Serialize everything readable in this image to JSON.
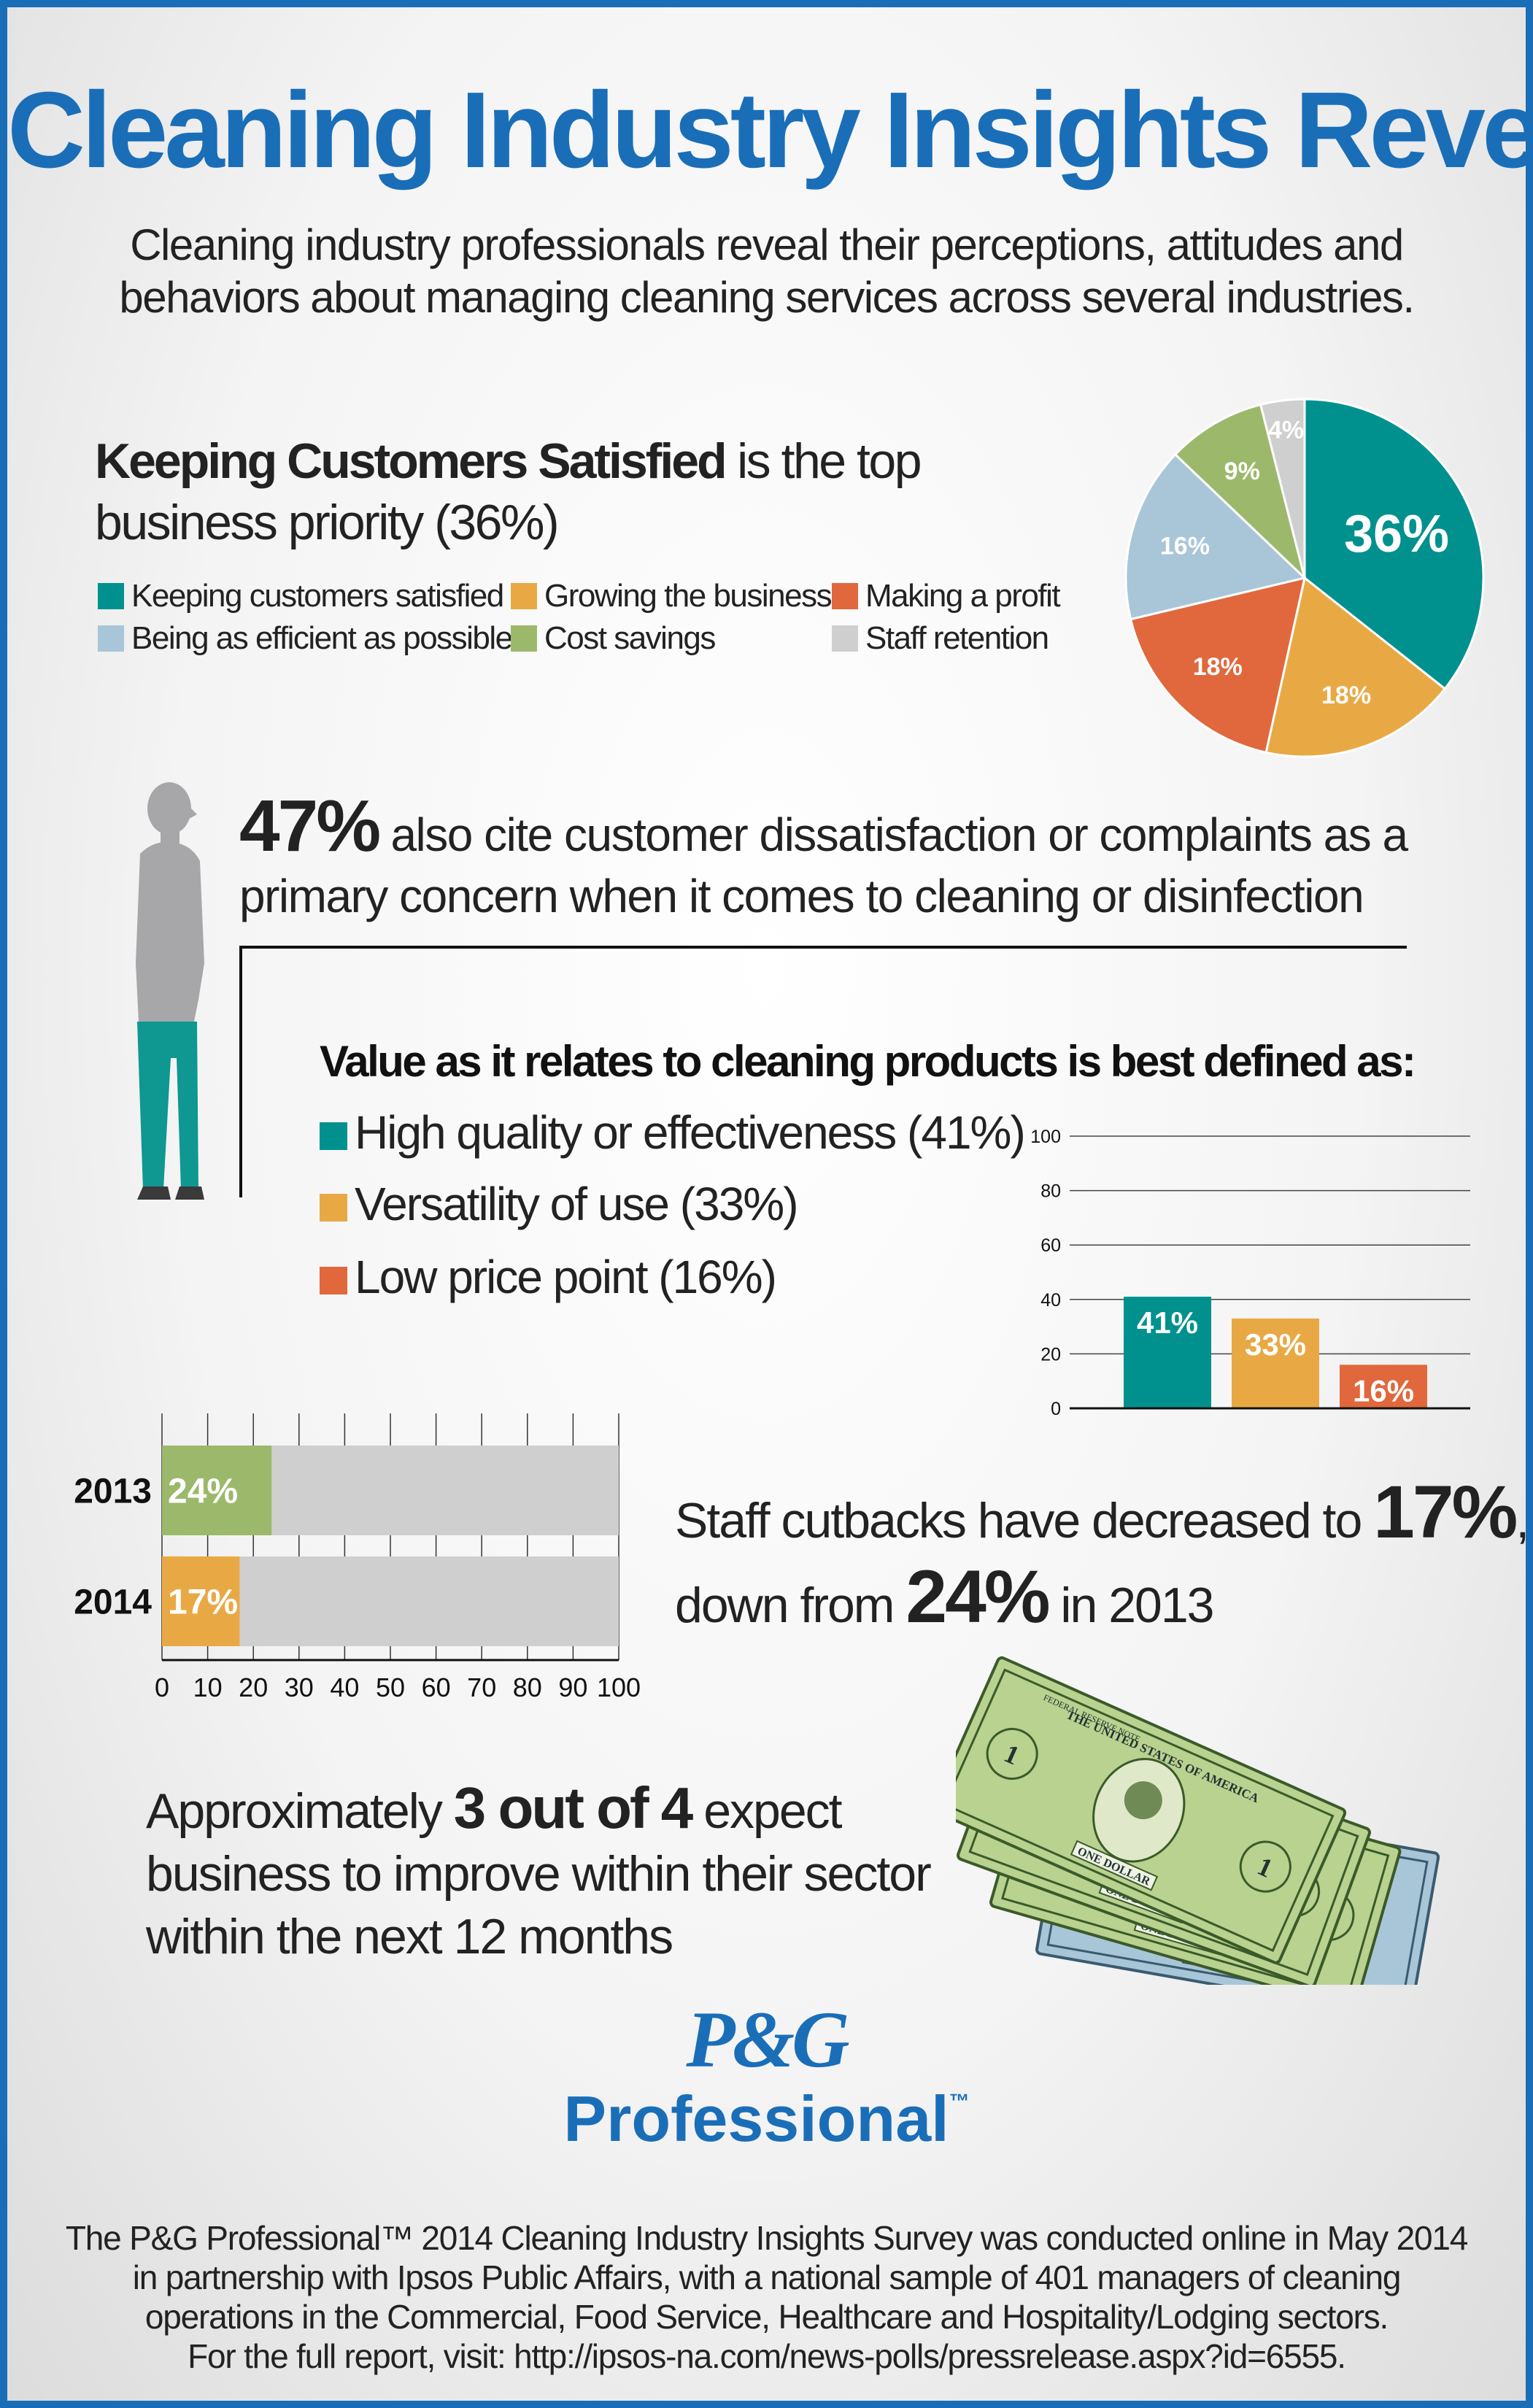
{
  "header": {
    "title": "Cleaning Industry Insights Revealed",
    "subtitle_line1": "Cleaning industry professionals reveal their perceptions, attitudes and",
    "subtitle_line2": "behaviors about managing cleaning services across several industries."
  },
  "priorities": {
    "heading_bold": "Keeping Customers Satisfied",
    "heading_rest": " is the top business priority (36%)"
  },
  "value_section": {
    "heading": "Value as it relates to cleaning products is best defined as:",
    "items": [
      {
        "label": "High quality or effectiveness (41%)",
        "color": "#00918e"
      },
      {
        "label": "Versatility of use (33%)",
        "color": "#e8a945"
      },
      {
        "label": "Low price point (16%)",
        "color": "#e0683c"
      }
    ]
  },
  "complaints": {
    "stat": "47%",
    "text": " also cite customer dissatisfaction or complaints as a primary concern when it comes to cleaning or disinfection"
  },
  "staff": {
    "pre": "Staff cutbacks have decreased to ",
    "big1": "17%",
    "after1": ",",
    "line2_pre": "down from ",
    "big2": "24%",
    "line2_post": " in 2013"
  },
  "outlook": {
    "pre": "Approximately ",
    "bold": "3 out of 4",
    "post": " expect business to improve within their sector within the next 12 months"
  },
  "money_image": {
    "bill_text_top": "THE UNITED STATES OF AMERICA",
    "bill_text_bottom": "ONE DOLLAR",
    "bill_numeral": "1",
    "bill_serial": "FEDERAL RESERVE NOTE"
  },
  "logo": {
    "pg": "P&G",
    "professional": "Professional",
    "tm": "™"
  },
  "footnote": {
    "line1": "The P&G Professional™ 2014 Cleaning Industry Insights Survey was conducted online in May 2014",
    "line2": "in partnership with Ipsos Public Affairs, with a national sample of 401 managers of cleaning",
    "line3": "operations in the Commercial, Food Service, Healthcare and Hospitality/Lodging sectors.",
    "line4": "For the full report, visit: http://ipsos-na.com/news-polls/pressrelease.aspx?id=6555."
  },
  "chart_data": [
    {
      "type": "pie",
      "categories": [
        "Keeping customers satisfied",
        "Growing the business",
        "Making a profit",
        "Being as efficient as possible",
        "Cost savings",
        "Staff retention"
      ],
      "values": [
        36,
        18,
        18,
        16,
        9,
        4
      ],
      "labels": [
        "36%",
        "18%",
        "18%",
        "16%",
        "9%",
        "4%"
      ],
      "colors": [
        "#00918e",
        "#e8a945",
        "#e0683c",
        "#a9c6d8",
        "#9cb96b",
        "#cfcfcf"
      ],
      "legend_rows": [
        [
          "Keeping customers satisfied",
          "Growing the business",
          "Making a profit"
        ],
        [
          "Being as efficient as possible",
          "Cost savings",
          "Staff retention"
        ]
      ]
    },
    {
      "type": "bar",
      "categories": [
        "High quality or effectiveness",
        "Versatility of use",
        "Low price point"
      ],
      "values": [
        41,
        33,
        16
      ],
      "labels": [
        "41%",
        "33%",
        "16%"
      ],
      "colors": [
        "#00918e",
        "#e8a945",
        "#e0683c"
      ],
      "ylim": [
        0,
        100
      ],
      "yticks": [
        0,
        20,
        40,
        60,
        80,
        100
      ],
      "grid": true
    },
    {
      "type": "bar",
      "orientation": "horizontal",
      "categories": [
        "2013",
        "2014"
      ],
      "values": [
        24,
        17
      ],
      "labels": [
        "24%",
        "17%"
      ],
      "colors": [
        "#9cb96b",
        "#e8a945"
      ],
      "background_color": "#cfcfcf",
      "xlim": [
        0,
        100
      ],
      "xticks": [
        0,
        10,
        20,
        30,
        40,
        50,
        60,
        70,
        80,
        90,
        100
      ]
    }
  ]
}
